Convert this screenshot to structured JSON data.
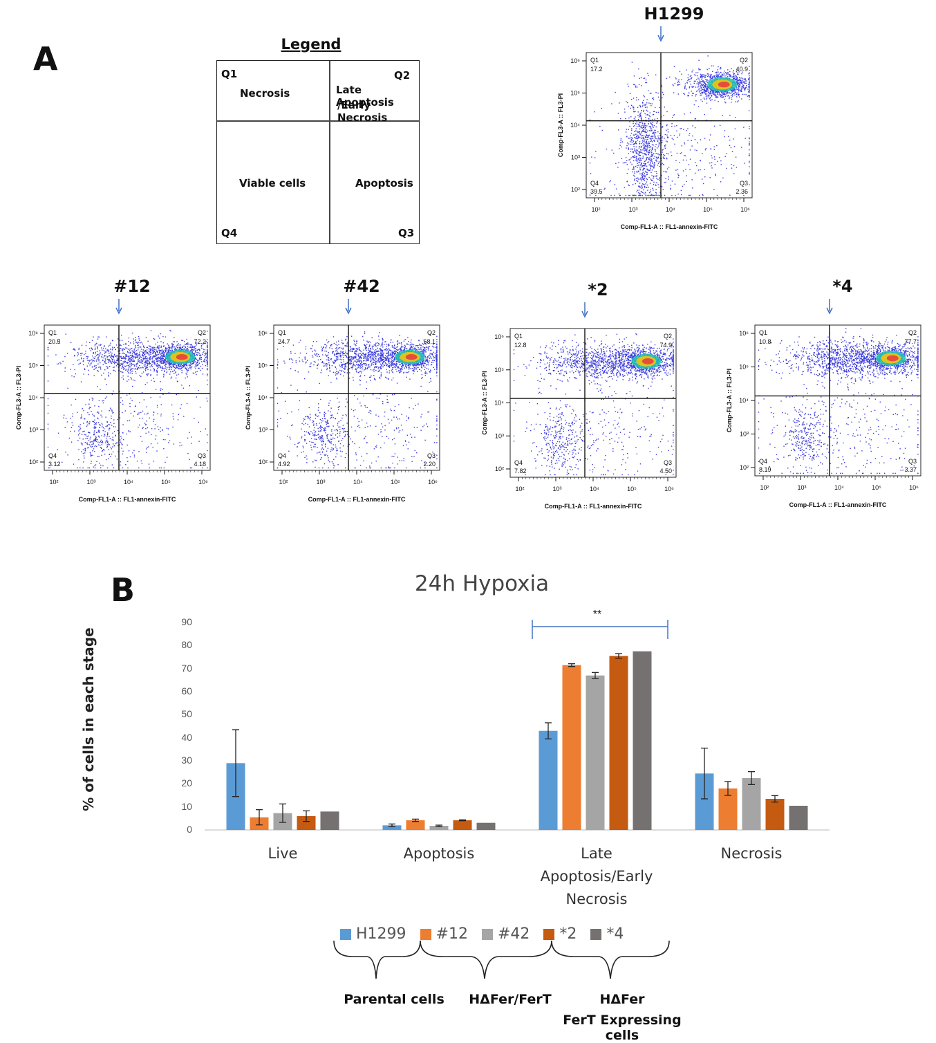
{
  "panel_a": {
    "letter": "A",
    "legend": {
      "title": "Legend",
      "q1": "Q1",
      "q2": "Q2",
      "q3": "Q3",
      "q4": "Q4",
      "necrosis": "Necrosis",
      "late_line1": "Late Apoptosis",
      "late_line2": "/Early Necrosis",
      "viable": "Viable cells",
      "apoptosis": "Apoptosis"
    },
    "x_axis_label": "Comp-FL1-A :: FL1-annexin-FITC",
    "y_axis_label": "Comp-FL3-A :: FL3-PI",
    "plots": [
      {
        "id": "H1299",
        "title": "H1299",
        "q1": "17.2",
        "q2": "40.9",
        "q3": "2.36",
        "q4": "39.5"
      },
      {
        "id": "12",
        "title": "#12",
        "q1": "20.5",
        "q2": "72.2",
        "q3": "4.18",
        "q4": "3.12"
      },
      {
        "id": "42",
        "title": "#42",
        "q1": "24.7",
        "q2": "68.1",
        "q3": "2.20",
        "q4": "4.92"
      },
      {
        "id": "s2",
        "title": "*2",
        "q1": "12.8",
        "q2": "74.9",
        "q3": "4.50",
        "q4": "7.82"
      },
      {
        "id": "s4",
        "title": "*4",
        "q1": "10.8",
        "q2": "77.7",
        "q3": "3.37",
        "q4": "8.19"
      }
    ]
  },
  "panel_b": {
    "letter": "B",
    "significance": "**",
    "groups": {
      "parental": "Parental cells",
      "hdf": "HΔFer/FerT",
      "hdf_expr_line1": "HΔFer",
      "hdf_expr_line2": "FerT Expressing cells"
    }
  },
  "chart_data": {
    "type": "bar",
    "title": "24h Hypoxia",
    "xlabel": "",
    "ylabel": "% of cells in each stage",
    "ylim": [
      0,
      90
    ],
    "yticks": [
      0,
      10,
      20,
      30,
      40,
      50,
      60,
      70,
      80,
      90
    ],
    "categories": [
      "Live",
      "Apoptosis",
      "Late Apoptosis/Early Necrosis",
      "Necrosis"
    ],
    "category_lines": [
      [
        "Live"
      ],
      [
        "Apoptosis"
      ],
      [
        "Late",
        "Apoptosis/Early",
        "Necrosis"
      ],
      [
        "Necrosis"
      ]
    ],
    "series": [
      {
        "name": "H1299",
        "color": "#5b9bd5",
        "values": [
          29,
          2,
          43,
          24.5
        ],
        "errors": [
          14.5,
          0.6,
          3.5,
          11
        ]
      },
      {
        "name": "#12",
        "color": "#ed7d31",
        "values": [
          5.5,
          4.2,
          71.5,
          18
        ],
        "errors": [
          3.3,
          0.5,
          0.6,
          3
        ]
      },
      {
        "name": "#42",
        "color": "#a5a5a5",
        "values": [
          7.3,
          1.8,
          67,
          22.5
        ],
        "errors": [
          4,
          0.3,
          1.3,
          2.8
        ]
      },
      {
        "name": "*2",
        "color": "#c55a11",
        "values": [
          6,
          4.2,
          75.5,
          13.5
        ],
        "errors": [
          2.3,
          0.2,
          1,
          1.4
        ]
      },
      {
        "name": "*4",
        "color": "#767171",
        "values": [
          8,
          3.1,
          77.5,
          10.5
        ],
        "errors": [
          0,
          0,
          0,
          0
        ]
      }
    ]
  }
}
